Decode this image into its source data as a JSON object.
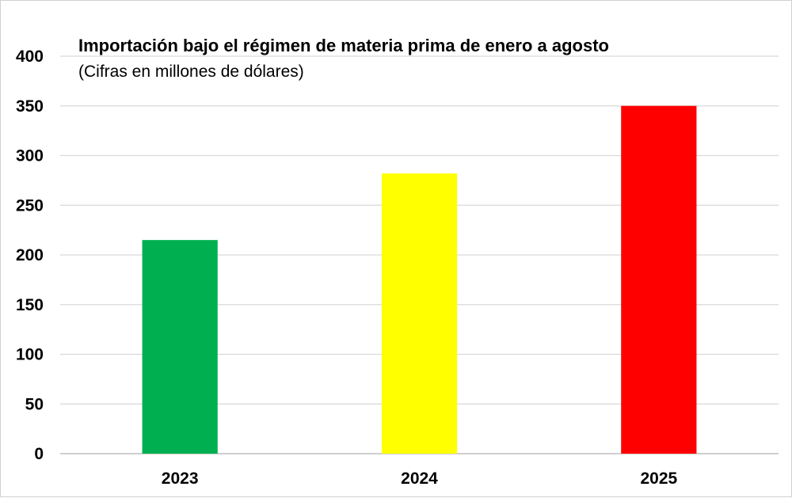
{
  "chart_data": {
    "type": "bar",
    "title": "Importación bajo el régimen de materia prima de enero a agosto",
    "subtitle": "(Cifras en millones de dólares)",
    "categories": [
      "2023",
      "2024",
      "2025"
    ],
    "values": [
      215,
      282,
      350
    ],
    "colors": [
      "#00b050",
      "#ffff00",
      "#ff0000"
    ],
    "ylim": [
      0,
      400
    ],
    "yticks": [
      "0",
      "50",
      "100",
      "150",
      "200",
      "250",
      "300",
      "350",
      "400"
    ],
    "grid": true,
    "legend": "none"
  }
}
